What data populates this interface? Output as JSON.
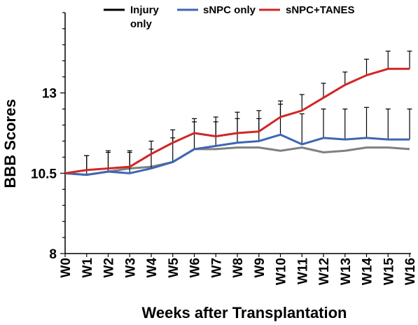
{
  "chart_data": {
    "type": "line",
    "title": "",
    "xlabel": "Weeks after Transplantation",
    "ylabel": "BBB Scores",
    "ylim": [
      8,
      15.5
    ],
    "yticks": [
      8,
      10.5,
      13
    ],
    "ytick_labels": [
      "8",
      "10.5",
      "13"
    ],
    "grid": false,
    "legend_position": "top",
    "categories": [
      "W0",
      "W1",
      "W2",
      "W3",
      "W4",
      "W5",
      "W6",
      "W7",
      "W8",
      "W9",
      "W10",
      "W11",
      "W12",
      "W13",
      "W14",
      "W15",
      "W16"
    ],
    "series": [
      {
        "name": "Injury only",
        "legend_label": "Injury\nonly",
        "legend_color": "#000000",
        "color": "#808080",
        "values": [
          10.5,
          10.45,
          10.55,
          10.65,
          10.7,
          10.85,
          11.25,
          11.25,
          11.3,
          11.3,
          11.2,
          11.3,
          11.15,
          11.2,
          11.3,
          11.3,
          11.25
        ],
        "error_upper": [
          null,
          0,
          0,
          0,
          0,
          0,
          0,
          0,
          0,
          0,
          0,
          0,
          0,
          0,
          0,
          0,
          0
        ]
      },
      {
        "name": "sNPC only",
        "legend_label": "sNPC only",
        "legend_color": "#3d67b3",
        "color": "#3d67b3",
        "values": [
          10.5,
          10.45,
          10.55,
          10.5,
          10.65,
          10.85,
          11.25,
          11.35,
          11.45,
          11.5,
          11.7,
          11.4,
          11.6,
          11.55,
          11.6,
          11.55,
          11.55
        ],
        "error_upper": [
          null,
          0.6,
          0.65,
          0.65,
          0.6,
          0.75,
          0.85,
          0.9,
          0.95,
          0.95,
          0.95,
          0.95,
          0.9,
          0.95,
          0.95,
          0.95,
          0.95
        ]
      },
      {
        "name": "sNPC+TANES",
        "legend_label": "sNPC+TANES",
        "legend_color": "#d02627",
        "color": "#d02627",
        "values": [
          10.5,
          10.6,
          10.65,
          10.7,
          11.1,
          11.45,
          11.75,
          11.65,
          11.75,
          11.8,
          12.25,
          12.45,
          12.85,
          13.25,
          13.55,
          13.75,
          13.75
        ],
        "error_upper": [
          null,
          0.45,
          0.5,
          0.5,
          0.4,
          0.4,
          0.45,
          0.45,
          0.45,
          0.4,
          0.5,
          0.5,
          0.45,
          0.4,
          0.5,
          0.55,
          0.55
        ]
      }
    ]
  }
}
